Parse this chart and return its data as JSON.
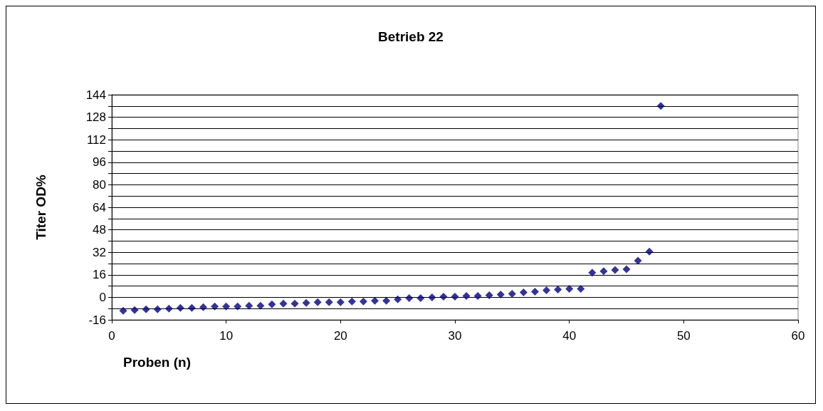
{
  "chart_data": {
    "type": "scatter",
    "title": "Betrieb 22",
    "xlabel": "Proben (n)",
    "ylabel": "Titer OD%",
    "x": [
      1,
      2,
      3,
      4,
      5,
      6,
      7,
      8,
      9,
      10,
      11,
      12,
      13,
      14,
      15,
      16,
      17,
      18,
      19,
      20,
      21,
      22,
      23,
      24,
      25,
      26,
      27,
      28,
      29,
      30,
      31,
      32,
      33,
      34,
      35,
      36,
      37,
      38,
      39,
      40,
      41,
      42,
      43,
      44,
      45,
      46,
      47,
      48
    ],
    "series": [
      {
        "color": "#000080",
        "values": [
          -9.5,
          -9,
          -8.5,
          -8.5,
          -8,
          -7.5,
          -7.5,
          -7,
          -6.5,
          -6.5,
          -6.5,
          -6,
          -6,
          -5,
          -4.5,
          -4.5,
          -4,
          -3.5,
          -3.5,
          -3.5,
          -3,
          -3,
          -2.5,
          -2.5,
          -1.5,
          -0.5,
          -0.5,
          0,
          0.5,
          0.5,
          1,
          1,
          1.5,
          2,
          2.5,
          3.5,
          4,
          5,
          5.5,
          6,
          6,
          17.5,
          18.5,
          19.5,
          20,
          26,
          32.5,
          136
        ]
      }
    ],
    "xlim": [
      0,
      60
    ],
    "xticks": [
      0,
      10,
      20,
      30,
      40,
      50,
      60
    ],
    "ylim": [
      -16,
      144
    ],
    "yticks": [
      -16,
      {
        "value": -8,
        "label": null
      },
      0,
      {
        "value": 8,
        "label": null
      },
      16,
      {
        "value": 24,
        "label": null
      },
      32,
      {
        "value": 40,
        "label": null
      },
      48,
      {
        "value": 56,
        "label": null
      },
      64,
      {
        "value": 72,
        "label": null
      },
      80,
      {
        "value": 88,
        "label": null
      },
      96,
      {
        "value": 104,
        "label": null
      },
      112,
      {
        "value": 120,
        "label": null
      },
      128,
      {
        "value": 136,
        "label": null
      },
      144
    ],
    "grid": "y",
    "marker": "diamond"
  }
}
